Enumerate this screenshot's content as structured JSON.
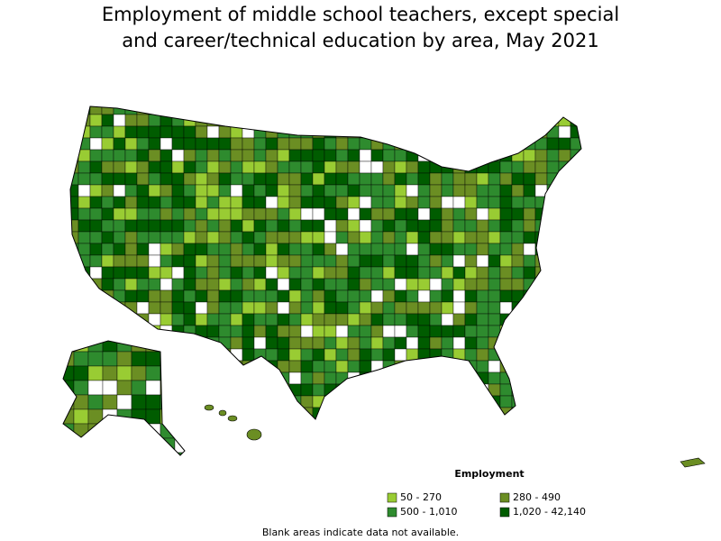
{
  "title": "Employment of middle school teachers, except special and career/technical education by area, May 2021",
  "legend": {
    "title": "Employment",
    "items": [
      {
        "label": "50 - 270",
        "color": "#99cc33"
      },
      {
        "label": "280 - 490",
        "color": "#6b8e23"
      },
      {
        "label": "500 - 1,010",
        "color": "#2e8b2e"
      },
      {
        "label": "1,020 - 42,140",
        "color": "#005c00"
      }
    ]
  },
  "note": "Blank areas indicate data not available."
}
